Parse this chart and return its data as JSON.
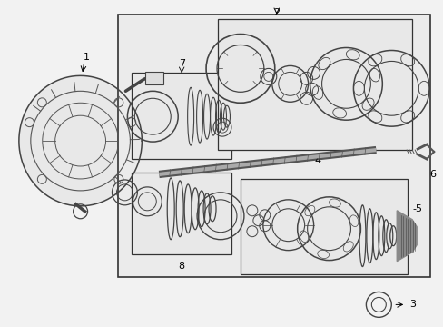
{
  "bg_color": "#f2f2f2",
  "fig_width": 4.89,
  "fig_height": 3.6,
  "dpi": 100
}
